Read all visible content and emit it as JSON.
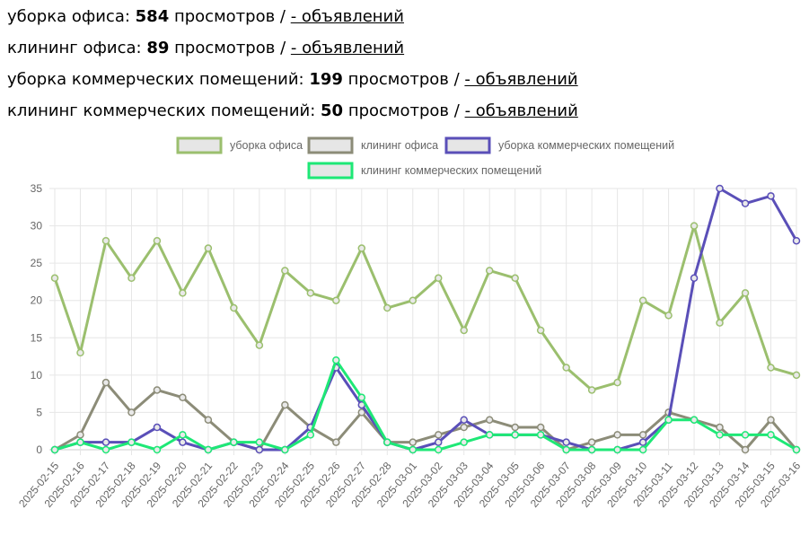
{
  "stats": [
    {
      "label": "уборка офиса:",
      "count": "584",
      "suffix": "просмотров /",
      "link": "- объявлений"
    },
    {
      "label": "клининг офиса:",
      "count": "89",
      "suffix": "просмотров /",
      "link": "- объявлений"
    },
    {
      "label": "уборка коммерческих помещений:",
      "count": "199",
      "suffix": "просмотров /",
      "link": "- объявлений"
    },
    {
      "label": "клининг коммерческих помещений:",
      "count": "50",
      "suffix": "просмотров /",
      "link": "- объявлений"
    }
  ],
  "chart_data": {
    "type": "line",
    "legend_position": "top",
    "grid": true,
    "ylim": [
      0,
      35
    ],
    "yticks": [
      0,
      5,
      10,
      15,
      20,
      25,
      30,
      35
    ],
    "x": [
      "2025-02-15",
      "2025-02-16",
      "2025-02-17",
      "2025-02-18",
      "2025-02-19",
      "2025-02-20",
      "2025-02-21",
      "2025-02-22",
      "2025-02-23",
      "2025-02-24",
      "2025-02-25",
      "2025-02-26",
      "2025-02-27",
      "2025-02-28",
      "2025-03-01",
      "2025-03-02",
      "2025-03-03",
      "2025-03-04",
      "2025-03-05",
      "2025-03-06",
      "2025-03-07",
      "2025-03-08",
      "2025-03-09",
      "2025-03-10",
      "2025-03-11",
      "2025-03-12",
      "2025-03-13",
      "2025-03-14",
      "2025-03-15",
      "2025-03-16"
    ],
    "series": [
      {
        "name": "уборка офиса",
        "color": "#9bbf6e",
        "values": [
          23,
          13,
          28,
          23,
          28,
          21,
          27,
          19,
          14,
          24,
          21,
          20,
          27,
          19,
          20,
          23,
          16,
          24,
          23,
          16,
          11,
          8,
          9,
          20,
          18,
          30,
          17,
          21,
          11,
          10
        ]
      },
      {
        "name": "клининг офиса",
        "color": "#8c8c78",
        "values": [
          0,
          2,
          9,
          5,
          8,
          7,
          4,
          1,
          0,
          6,
          3,
          1,
          5,
          1,
          1,
          2,
          3,
          4,
          3,
          3,
          0,
          1,
          2,
          2,
          5,
          4,
          3,
          0,
          4,
          0
        ]
      },
      {
        "name": "уборка коммерческих помещений",
        "color": "#5a4fb8",
        "values": [
          0,
          1,
          1,
          1,
          3,
          1,
          0,
          1,
          0,
          0,
          3,
          11,
          6,
          1,
          0,
          1,
          4,
          2,
          2,
          2,
          1,
          0,
          0,
          1,
          4,
          23,
          35,
          33,
          34,
          28
        ]
      },
      {
        "name": "клининг коммерческих помещений",
        "color": "#1ee876",
        "values": [
          0,
          1,
          0,
          1,
          0,
          2,
          0,
          1,
          1,
          0,
          2,
          12,
          7,
          1,
          0,
          0,
          1,
          2,
          2,
          2,
          0,
          0,
          0,
          0,
          4,
          4,
          2,
          2,
          2,
          0
        ]
      }
    ]
  }
}
